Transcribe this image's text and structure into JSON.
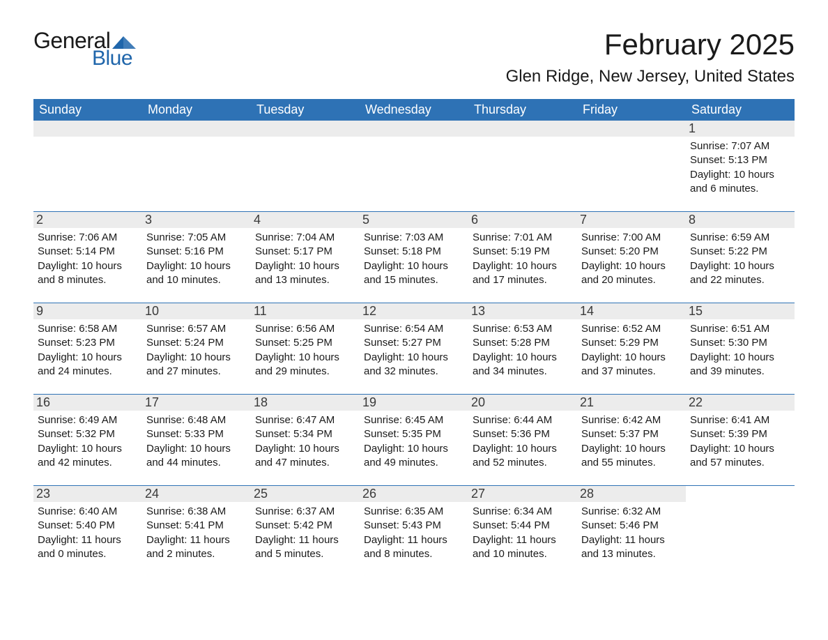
{
  "logo": {
    "word1": "General",
    "word2": "Blue",
    "color_general": "#1a1a1a",
    "color_blue": "#2066ab",
    "triangle_color": "#2066ab"
  },
  "header": {
    "month_title": "February 2025",
    "location": "Glen Ridge, New Jersey, United States"
  },
  "styling": {
    "header_bg": "#2e72b5",
    "header_fg": "#ffffff",
    "daynum_bg": "#ececec",
    "daynum_fg": "#3a3a3a",
    "week_border": "#2e72b5",
    "body_text": "#1a1a1a",
    "page_bg": "#ffffff",
    "dow_fontsize": 18,
    "title_fontsize": 42,
    "location_fontsize": 24,
    "cell_fontsize": 15
  },
  "days_of_week": [
    "Sunday",
    "Monday",
    "Tuesday",
    "Wednesday",
    "Thursday",
    "Friday",
    "Saturday"
  ],
  "weeks": [
    [
      {
        "n": "",
        "sunrise": "",
        "sunset": "",
        "daylight": ""
      },
      {
        "n": "",
        "sunrise": "",
        "sunset": "",
        "daylight": ""
      },
      {
        "n": "",
        "sunrise": "",
        "sunset": "",
        "daylight": ""
      },
      {
        "n": "",
        "sunrise": "",
        "sunset": "",
        "daylight": ""
      },
      {
        "n": "",
        "sunrise": "",
        "sunset": "",
        "daylight": ""
      },
      {
        "n": "",
        "sunrise": "",
        "sunset": "",
        "daylight": ""
      },
      {
        "n": "1",
        "sunrise": "Sunrise: 7:07 AM",
        "sunset": "Sunset: 5:13 PM",
        "daylight": "Daylight: 10 hours and 6 minutes."
      }
    ],
    [
      {
        "n": "2",
        "sunrise": "Sunrise: 7:06 AM",
        "sunset": "Sunset: 5:14 PM",
        "daylight": "Daylight: 10 hours and 8 minutes."
      },
      {
        "n": "3",
        "sunrise": "Sunrise: 7:05 AM",
        "sunset": "Sunset: 5:16 PM",
        "daylight": "Daylight: 10 hours and 10 minutes."
      },
      {
        "n": "4",
        "sunrise": "Sunrise: 7:04 AM",
        "sunset": "Sunset: 5:17 PM",
        "daylight": "Daylight: 10 hours and 13 minutes."
      },
      {
        "n": "5",
        "sunrise": "Sunrise: 7:03 AM",
        "sunset": "Sunset: 5:18 PM",
        "daylight": "Daylight: 10 hours and 15 minutes."
      },
      {
        "n": "6",
        "sunrise": "Sunrise: 7:01 AM",
        "sunset": "Sunset: 5:19 PM",
        "daylight": "Daylight: 10 hours and 17 minutes."
      },
      {
        "n": "7",
        "sunrise": "Sunrise: 7:00 AM",
        "sunset": "Sunset: 5:20 PM",
        "daylight": "Daylight: 10 hours and 20 minutes."
      },
      {
        "n": "8",
        "sunrise": "Sunrise: 6:59 AM",
        "sunset": "Sunset: 5:22 PM",
        "daylight": "Daylight: 10 hours and 22 minutes."
      }
    ],
    [
      {
        "n": "9",
        "sunrise": "Sunrise: 6:58 AM",
        "sunset": "Sunset: 5:23 PM",
        "daylight": "Daylight: 10 hours and 24 minutes."
      },
      {
        "n": "10",
        "sunrise": "Sunrise: 6:57 AM",
        "sunset": "Sunset: 5:24 PM",
        "daylight": "Daylight: 10 hours and 27 minutes."
      },
      {
        "n": "11",
        "sunrise": "Sunrise: 6:56 AM",
        "sunset": "Sunset: 5:25 PM",
        "daylight": "Daylight: 10 hours and 29 minutes."
      },
      {
        "n": "12",
        "sunrise": "Sunrise: 6:54 AM",
        "sunset": "Sunset: 5:27 PM",
        "daylight": "Daylight: 10 hours and 32 minutes."
      },
      {
        "n": "13",
        "sunrise": "Sunrise: 6:53 AM",
        "sunset": "Sunset: 5:28 PM",
        "daylight": "Daylight: 10 hours and 34 minutes."
      },
      {
        "n": "14",
        "sunrise": "Sunrise: 6:52 AM",
        "sunset": "Sunset: 5:29 PM",
        "daylight": "Daylight: 10 hours and 37 minutes."
      },
      {
        "n": "15",
        "sunrise": "Sunrise: 6:51 AM",
        "sunset": "Sunset: 5:30 PM",
        "daylight": "Daylight: 10 hours and 39 minutes."
      }
    ],
    [
      {
        "n": "16",
        "sunrise": "Sunrise: 6:49 AM",
        "sunset": "Sunset: 5:32 PM",
        "daylight": "Daylight: 10 hours and 42 minutes."
      },
      {
        "n": "17",
        "sunrise": "Sunrise: 6:48 AM",
        "sunset": "Sunset: 5:33 PM",
        "daylight": "Daylight: 10 hours and 44 minutes."
      },
      {
        "n": "18",
        "sunrise": "Sunrise: 6:47 AM",
        "sunset": "Sunset: 5:34 PM",
        "daylight": "Daylight: 10 hours and 47 minutes."
      },
      {
        "n": "19",
        "sunrise": "Sunrise: 6:45 AM",
        "sunset": "Sunset: 5:35 PM",
        "daylight": "Daylight: 10 hours and 49 minutes."
      },
      {
        "n": "20",
        "sunrise": "Sunrise: 6:44 AM",
        "sunset": "Sunset: 5:36 PM",
        "daylight": "Daylight: 10 hours and 52 minutes."
      },
      {
        "n": "21",
        "sunrise": "Sunrise: 6:42 AM",
        "sunset": "Sunset: 5:37 PM",
        "daylight": "Daylight: 10 hours and 55 minutes."
      },
      {
        "n": "22",
        "sunrise": "Sunrise: 6:41 AM",
        "sunset": "Sunset: 5:39 PM",
        "daylight": "Daylight: 10 hours and 57 minutes."
      }
    ],
    [
      {
        "n": "23",
        "sunrise": "Sunrise: 6:40 AM",
        "sunset": "Sunset: 5:40 PM",
        "daylight": "Daylight: 11 hours and 0 minutes."
      },
      {
        "n": "24",
        "sunrise": "Sunrise: 6:38 AM",
        "sunset": "Sunset: 5:41 PM",
        "daylight": "Daylight: 11 hours and 2 minutes."
      },
      {
        "n": "25",
        "sunrise": "Sunrise: 6:37 AM",
        "sunset": "Sunset: 5:42 PM",
        "daylight": "Daylight: 11 hours and 5 minutes."
      },
      {
        "n": "26",
        "sunrise": "Sunrise: 6:35 AM",
        "sunset": "Sunset: 5:43 PM",
        "daylight": "Daylight: 11 hours and 8 minutes."
      },
      {
        "n": "27",
        "sunrise": "Sunrise: 6:34 AM",
        "sunset": "Sunset: 5:44 PM",
        "daylight": "Daylight: 11 hours and 10 minutes."
      },
      {
        "n": "28",
        "sunrise": "Sunrise: 6:32 AM",
        "sunset": "Sunset: 5:46 PM",
        "daylight": "Daylight: 11 hours and 13 minutes."
      },
      {
        "n": "",
        "sunrise": "",
        "sunset": "",
        "daylight": ""
      }
    ]
  ]
}
